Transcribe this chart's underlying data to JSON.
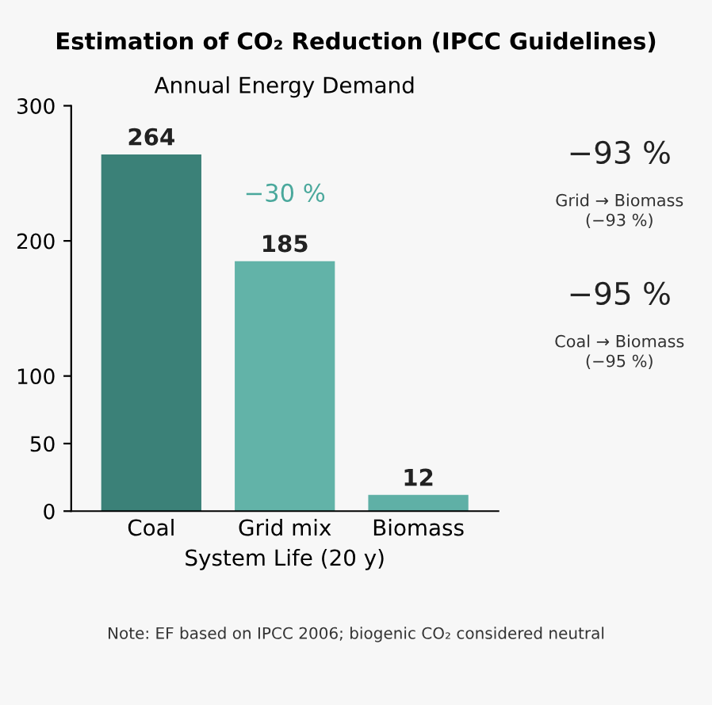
{
  "chart_data": {
    "type": "bar",
    "title": "Estimation of CO₂ Reduction (IPCC Guidelines)",
    "subtitle": "Annual Energy Demand",
    "xlabel": "System Life (20 y)",
    "categories": [
      "Coal",
      "Grid mix",
      "Biomass"
    ],
    "values": [
      264,
      185,
      12
    ],
    "colors": [
      "#3b8178",
      "#62b3a8",
      "#5fb0a6"
    ],
    "ylim": [
      0,
      300
    ],
    "yticks": [
      0,
      50,
      100,
      200,
      300
    ],
    "grid": false,
    "data_labels": true,
    "annotations": [
      "−30 %",
      "−93 %",
      "Grid → Biomass\n(−93 %)",
      "−95 %",
      "Coal → Biomass\n(−95 %)",
      "Note: EF based on IPCC 2006; biogenic CO₂ considered neutral"
    ]
  }
}
